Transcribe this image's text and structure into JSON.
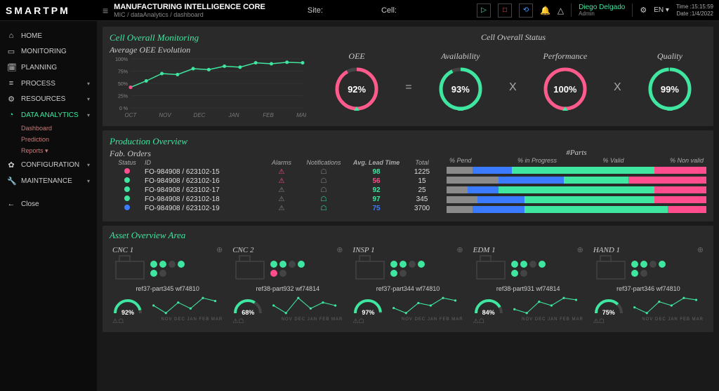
{
  "brand": "SMARTPM",
  "header": {
    "title": "MANUFACTURING INTELLIGENCE CORE",
    "breadcrumb": "MIC / dataAnalytics / dashboard",
    "site_label": "Site:",
    "cell_label": "Cell:",
    "user_name": "Diego Delgado",
    "user_role": "Admin",
    "lang": "EN",
    "time_label": "Time :",
    "time": "15:15:59",
    "date_label": "Date :",
    "date": "1/4/2022"
  },
  "nav": {
    "items": [
      {
        "icon": "⌂",
        "label": "HOME"
      },
      {
        "icon": "▭",
        "label": "MONITORING"
      },
      {
        "icon": "🗓",
        "label": "PLANNING"
      },
      {
        "icon": "≡",
        "label": "PROCESS",
        "caret": true
      },
      {
        "icon": "⚙",
        "label": "RESOURCES",
        "caret": true
      },
      {
        "icon": "◔",
        "label": "DATA ANALYTICS",
        "caret": true,
        "active": true
      },
      {
        "icon": "✿",
        "label": "CONFIGURATION",
        "caret": true
      },
      {
        "icon": "🔧",
        "label": "MAINTENANCE",
        "caret": true
      }
    ],
    "subs": [
      "Dashboard",
      "Prediction",
      "Reports"
    ],
    "close": "Close"
  },
  "cell_monitoring": {
    "title": "Cell Overall Monitoring",
    "subtitle": "Average OEE Evolution",
    "status_title": "Cell Overall Status",
    "chart": {
      "y_ticks": [
        "100%",
        "75%",
        "50%",
        "25%",
        "0 %"
      ],
      "x_ticks": [
        "OCT",
        "NOV",
        "DEC",
        "JAN",
        "FEB",
        "MAR"
      ],
      "values": [
        42,
        55,
        70,
        68,
        80,
        78,
        85,
        83,
        92,
        90,
        93,
        92
      ],
      "line_color": "#3ee6a0",
      "point_color": "#3ee6a0",
      "grid_color": "#3a3a3a",
      "bg": "#2a2a2a"
    },
    "gauges": [
      {
        "label": "OEE",
        "value": "92%",
        "pct": 92,
        "color": "#ff5a8c"
      },
      {
        "label": "Availability",
        "value": "93%",
        "pct": 93,
        "color": "#3ee6a0"
      },
      {
        "label": "Performance",
        "value": "100%",
        "pct": 100,
        "color": "#ff5a8c"
      },
      {
        "label": "Quality",
        "value": "99%",
        "pct": 99,
        "color": "#3ee6a0"
      }
    ],
    "ops": [
      "=",
      "X",
      "X"
    ]
  },
  "production": {
    "title": "Production Overview",
    "subtitle": "Fab. Orders",
    "headers": {
      "status": "Status",
      "id": "ID",
      "alarms": "Alarms",
      "notif": "Notifications",
      "lead": "Avg. Lead Time",
      "total": "Total"
    },
    "parts_title": "#Parts",
    "parts_headers": [
      "% Pend",
      "% in Progress",
      "% Valid",
      "% Non valid"
    ],
    "colors": {
      "pend": "#8a8a8a",
      "prog": "#3a7bff",
      "valid": "#3ee6a0",
      "nonvalid": "#ff4d8d"
    },
    "rows": [
      {
        "dot": "#ff4d8d",
        "id": "FO-984908 / 623102-15",
        "alarm": "#ff4d8d",
        "notif": "#888",
        "lead": "98",
        "lead_color": "#3ee6a0",
        "total": "1225",
        "segs": [
          10,
          15,
          55,
          20
        ]
      },
      {
        "dot": "#3ee6a0",
        "id": "FO-984908 / 623102-16",
        "alarm": "#ff4d8d",
        "notif": "#888",
        "lead": "56",
        "lead_color": "#ff4d8d",
        "total": "15",
        "segs": [
          20,
          25,
          25,
          30
        ]
      },
      {
        "dot": "#3ee6a0",
        "id": "FO-984908 / 623102-17",
        "alarm": "#888",
        "notif": "#888",
        "lead": "92",
        "lead_color": "#3ee6a0",
        "total": "25",
        "segs": [
          8,
          12,
          60,
          20
        ]
      },
      {
        "dot": "#3ee6a0",
        "id": "FO-984908 / 623102-18",
        "alarm": "#888",
        "notif": "#3ee6a0",
        "lead": "97",
        "lead_color": "#3ee6a0",
        "total": "345",
        "segs": [
          12,
          18,
          50,
          20
        ]
      },
      {
        "dot": "#3a7bff",
        "id": "FO-984908 / 623102-19",
        "alarm": "#888",
        "notif": "#3ee6a0",
        "lead": "75",
        "lead_color": "#3a7bff",
        "total": "3700",
        "segs": [
          10,
          20,
          55,
          15
        ]
      }
    ]
  },
  "assets": {
    "title": "Asset Overview Area",
    "months": [
      "NOV",
      "DEC",
      "JAN",
      "FEB",
      "MAR"
    ],
    "items": [
      {
        "name": "CNC 1",
        "ref": "ref37-part345 wf74810",
        "gauge": 92,
        "gauge_text": "92%",
        "pills": [
          "#3ee6a0",
          "#3ee6a0",
          "#444",
          "#3ee6a0",
          "#3ee6a0",
          "#444"
        ],
        "spark": [
          60,
          55,
          62,
          58,
          65,
          63
        ]
      },
      {
        "name": "CNC 2",
        "ref": "ref38-part932 wf74814",
        "gauge": 68,
        "gauge_text": "68%",
        "pills": [
          "#3ee6a0",
          "#3ee6a0",
          "#444",
          "#3ee6a0",
          "#ff4d8d",
          "#444"
        ],
        "spark": [
          50,
          45,
          55,
          48,
          52,
          50
        ]
      },
      {
        "name": "INSP 1",
        "ref": "ref37-part344 wf74810",
        "gauge": 97,
        "gauge_text": "97%",
        "pills": [
          "#3ee6a0",
          "#3ee6a0",
          "#444",
          "#3ee6a0",
          "#3ee6a0",
          "#444"
        ],
        "spark": [
          70,
          68,
          72,
          71,
          74,
          73
        ]
      },
      {
        "name": "EDM 1",
        "ref": "ref38-part931 wf74814",
        "gauge": 84,
        "gauge_text": "84%",
        "pills": [
          "#3ee6a0",
          "#3ee6a0",
          "#444",
          "#3ee6a0",
          "#3ee6a0",
          "#444"
        ],
        "spark": [
          62,
          60,
          66,
          64,
          68,
          67
        ]
      },
      {
        "name": "HAND 1",
        "ref": "ref37-part346 wf74810",
        "gauge": 75,
        "gauge_text": "75%",
        "pills": [
          "#3ee6a0",
          "#3ee6a0",
          "#444",
          "#3ee6a0",
          "#3ee6a0",
          "#444"
        ],
        "spark": [
          55,
          52,
          58,
          56,
          60,
          59
        ]
      }
    ]
  }
}
